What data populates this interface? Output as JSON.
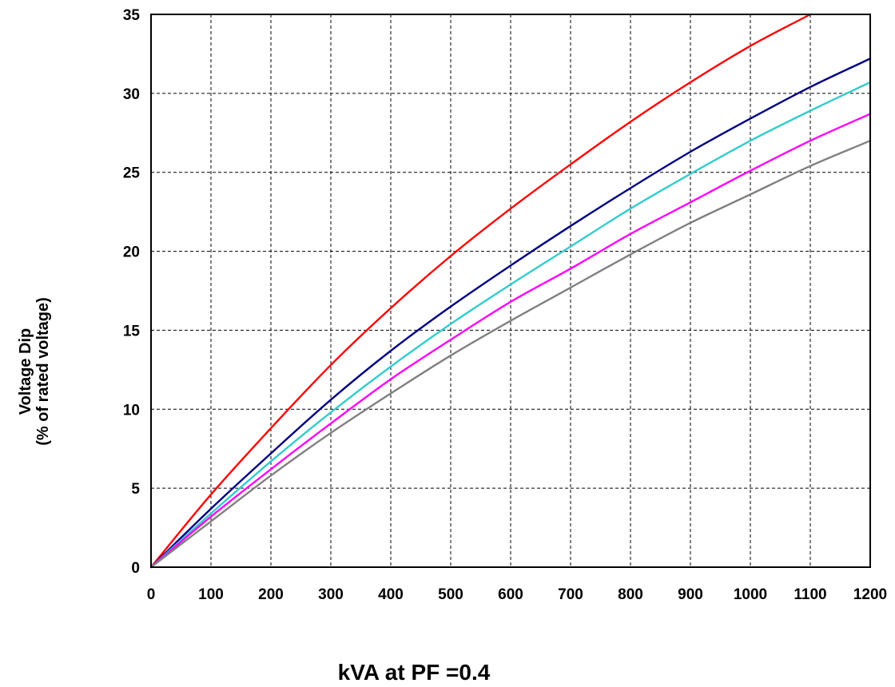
{
  "chart_data": {
    "type": "line",
    "title": "",
    "xlabel": "kVA at PF =0.4",
    "ylabel_line1": "Voltage Dip",
    "ylabel_line2": "(% of rated voltage)",
    "xlim": [
      0,
      1200
    ],
    "ylim": [
      0,
      35
    ],
    "x_ticks": [
      0,
      100,
      200,
      300,
      400,
      500,
      600,
      700,
      800,
      900,
      1000,
      1100,
      1200
    ],
    "y_ticks": [
      0,
      5,
      10,
      15,
      20,
      25,
      30,
      35
    ],
    "grid": true,
    "legend": "none",
    "x": [
      0,
      100,
      200,
      300,
      400,
      500,
      600,
      700,
      800,
      900,
      1000,
      1100,
      1200
    ],
    "series": [
      {
        "color": "#ff0000",
        "values": [
          0,
          4.6,
          8.8,
          12.8,
          16.4,
          19.7,
          22.7,
          25.5,
          28.2,
          30.7,
          33.0,
          35.0,
          null
        ]
      },
      {
        "color": "#000080",
        "values": [
          0,
          3.7,
          7.2,
          10.6,
          13.7,
          16.5,
          19.1,
          21.6,
          24.0,
          26.3,
          28.4,
          30.4,
          32.2
        ]
      },
      {
        "color": "#33cccc",
        "values": [
          0,
          3.4,
          6.7,
          9.8,
          12.7,
          15.4,
          17.9,
          20.3,
          22.7,
          24.9,
          27.0,
          28.9,
          30.7
        ]
      },
      {
        "color": "#ff00ff",
        "values": [
          0,
          3.2,
          6.2,
          9.1,
          11.9,
          14.4,
          16.8,
          18.9,
          21.1,
          23.1,
          25.1,
          27.0,
          28.7
        ]
      },
      {
        "color": "#808080",
        "values": [
          0,
          2.9,
          5.8,
          8.5,
          11.0,
          13.4,
          15.6,
          17.7,
          19.8,
          21.8,
          23.6,
          25.4,
          27.0
        ]
      }
    ]
  }
}
